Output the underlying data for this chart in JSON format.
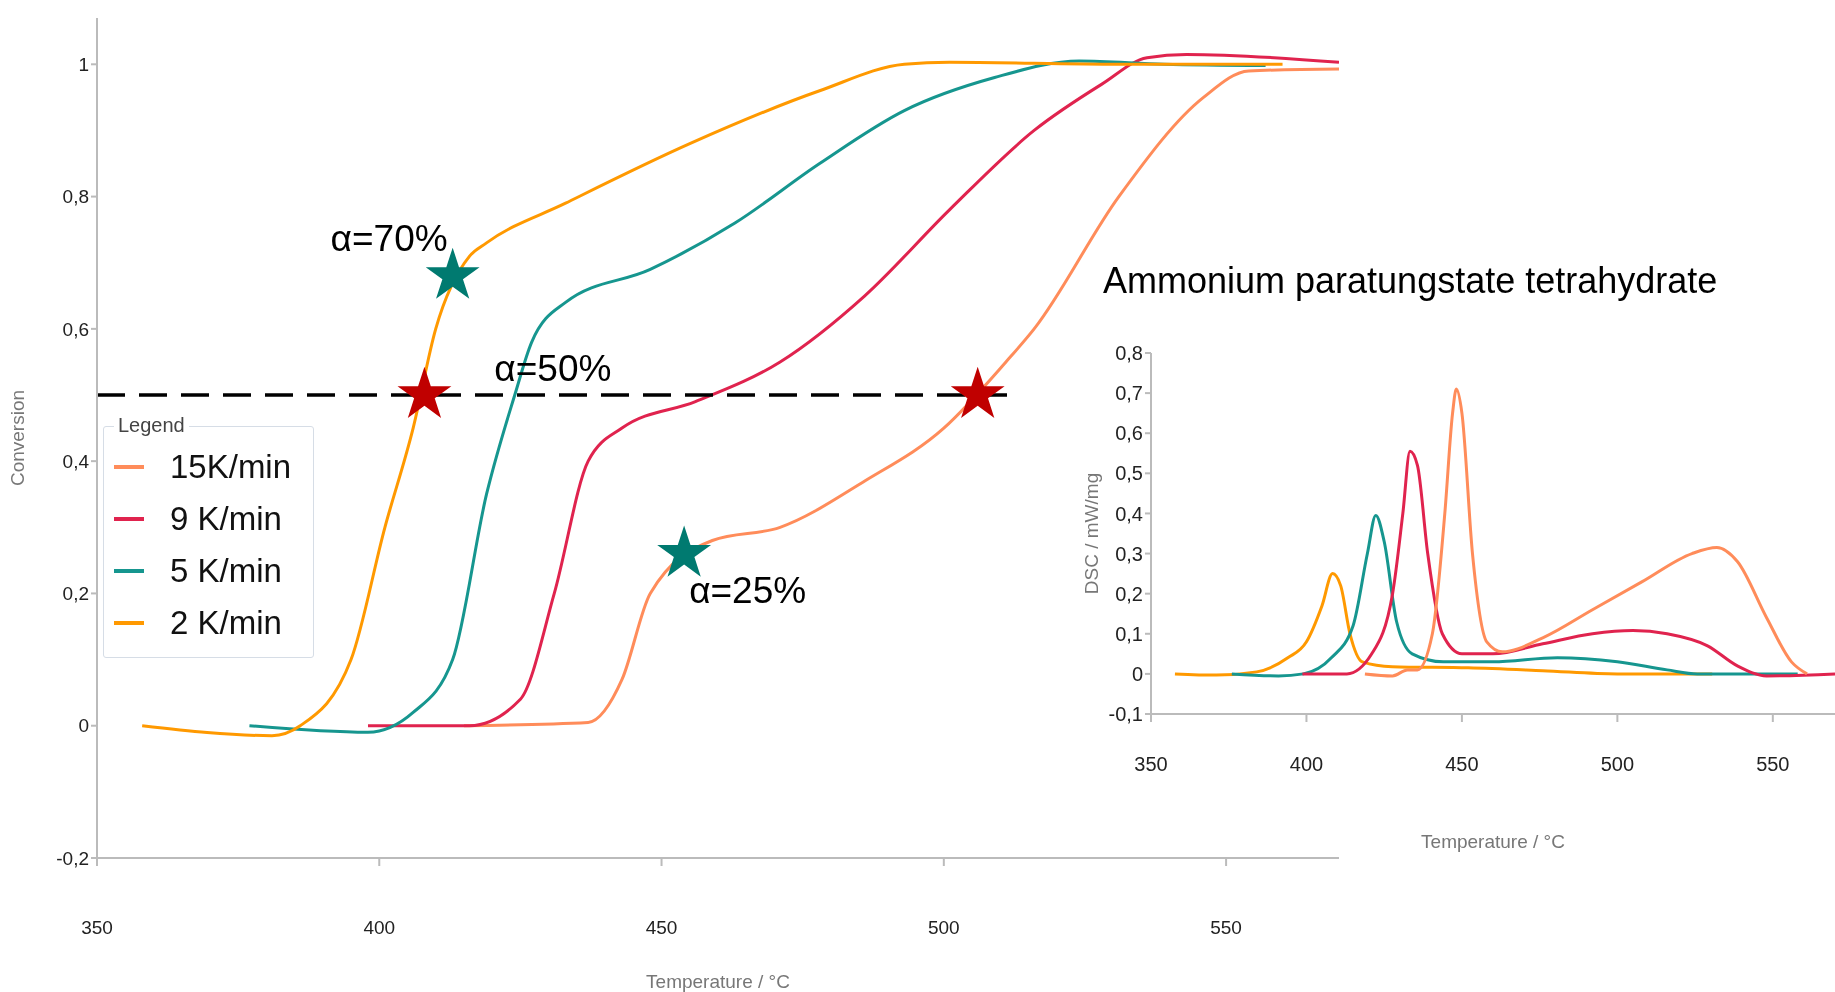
{
  "chart_data": [
    {
      "type": "line",
      "xlabel": "Temperature / °C",
      "ylabel": "Conversion",
      "legend_title": "Legend",
      "legend": "left",
      "grid": false,
      "xlim": [
        350,
        570
      ],
      "xticks": [
        350,
        400,
        450,
        500,
        550
      ],
      "ylim": [
        -0.2,
        1.07
      ],
      "yticks": [
        {
          "value": -0.2,
          "label": "-0,2"
        },
        {
          "value": 0,
          "label": "0"
        },
        {
          "value": 0.2,
          "label": "0,2"
        },
        {
          "value": 0.4,
          "label": "0,4"
        },
        {
          "value": 0.6,
          "label": "0,6"
        },
        {
          "value": 0.8,
          "label": "0,8"
        },
        {
          "value": 1,
          "label": "1"
        }
      ],
      "ref_lines": [
        {
          "axis": "y",
          "value": 0.5,
          "label": "α=50%",
          "color": "#000000",
          "line_style": "dashed"
        }
      ],
      "annotations": [
        {
          "text": "α=70%",
          "x": 413,
          "y": 0.68
        },
        {
          "text": "α=25%",
          "x": 454,
          "y": 0.26
        }
      ],
      "series": [
        {
          "name": "15K/min",
          "color": "#ff8c5a",
          "x": [
            415,
            437,
            443,
            448,
            459,
            471,
            486,
            500,
            511,
            516,
            531,
            546,
            554,
            570
          ],
          "values": [
            0,
            0.005,
            0.07,
            0.2,
            0.28,
            0.3,
            0.37,
            0.45,
            0.55,
            0.6,
            0.8,
            0.95,
            0.99,
            0.993
          ]
        },
        {
          "name": "9 K/min",
          "color": "#e0234e",
          "x": [
            398,
            416,
            425,
            431,
            437,
            443,
            456,
            471,
            486,
            501,
            516,
            528,
            536,
            543,
            570
          ],
          "values": [
            0,
            0,
            0.04,
            0.2,
            0.4,
            0.45,
            0.49,
            0.55,
            0.65,
            0.78,
            0.9,
            0.97,
            1.01,
            1.015,
            1.003
          ]
        },
        {
          "name": "5 K/min",
          "color": "#16968f",
          "x": [
            377,
            398,
            406,
            413,
            419,
            424,
            427,
            433,
            448,
            463,
            478,
            493,
            509,
            524,
            539,
            557
          ],
          "values": [
            0,
            -0.01,
            0.02,
            0.1,
            0.35,
            0.5,
            0.58,
            0.64,
            0.69,
            0.76,
            0.85,
            0.93,
            0.98,
            1.005,
            1,
            0.998
          ]
        },
        {
          "name": "2 K/min",
          "color": "#ff9900",
          "x": [
            358,
            381,
            386,
            395,
            401,
            406,
            410,
            416,
            419,
            433,
            455,
            478,
            493,
            501,
            531,
            560
          ],
          "values": [
            0,
            -0.015,
            0,
            0.1,
            0.3,
            0.45,
            0.6,
            0.71,
            0.73,
            0.79,
            0.88,
            0.96,
            1,
            1.003,
            1,
            1
          ]
        },
        {
          "type": "scatter",
          "marker": "star",
          "color": "#c00000",
          "x": [
            408,
            506
          ],
          "values": [
            0.5,
            0.5
          ]
        },
        {
          "type": "scatter",
          "marker": "star",
          "color": "#007a70",
          "x": [
            413,
            454
          ],
          "values": [
            0.68,
            0.26
          ]
        }
      ]
    },
    {
      "type": "line",
      "title": "Ammonium paratungstate tetrahydrate",
      "xlabel": "Temperature / °C",
      "ylabel": "DSC / mW/mg",
      "legend": false,
      "grid": false,
      "xlim": [
        350,
        570
      ],
      "xticks": [
        350,
        400,
        450,
        500,
        550
      ],
      "ylim": [
        -0.1,
        0.8
      ],
      "yticks": [
        {
          "value": -0.1,
          "label": "-0,1"
        },
        {
          "value": 0,
          "label": "0"
        },
        {
          "value": 0.1,
          "label": "0,1"
        },
        {
          "value": 0.2,
          "label": "0,2"
        },
        {
          "value": 0.3,
          "label": "0,3"
        },
        {
          "value": 0.4,
          "label": "0,4"
        },
        {
          "value": 0.5,
          "label": "0,5"
        },
        {
          "value": 0.6,
          "label": "0,6"
        },
        {
          "value": 0.7,
          "label": "0,7"
        },
        {
          "value": 0.8,
          "label": "0,8"
        }
      ],
      "series": [
        {
          "color": "#ff9900",
          "x": [
            357.7,
            371,
            384,
            394,
            400,
            405,
            408.4,
            411,
            414,
            418,
            427.6,
            452,
            476,
            500,
            530.5
          ],
          "values": [
            0,
            -0.003,
            0.005,
            0.04,
            0.08,
            0.17,
            0.25,
            0.22,
            0.1,
            0.03,
            0.018,
            0.015,
            0.008,
            0,
            0
          ]
        },
        {
          "color": "#16968f",
          "x": [
            376,
            391,
            399,
            408,
            415,
            419.6,
            422.3,
            425,
            429,
            434,
            444,
            460,
            480.7,
            500,
            516,
            525.7,
            558
          ],
          "values": [
            0,
            -0.005,
            0,
            0.04,
            0.12,
            0.3,
            0.395,
            0.33,
            0.13,
            0.05,
            0.03,
            0.03,
            0.04,
            0.03,
            0.01,
            0,
            0
          ]
        },
        {
          "color": "#e0234e",
          "x": [
            398.7,
            413,
            421,
            427.7,
            431,
            433.3,
            435.7,
            439,
            443.7,
            450,
            460,
            476,
            492,
            505,
            516,
            529,
            538.6,
            548,
            570
          ],
          "values": [
            0,
            0,
            0.05,
            0.2,
            0.4,
            0.555,
            0.52,
            0.3,
            0.1,
            0.05,
            0.05,
            0.075,
            0.1,
            0.108,
            0.1,
            0.07,
            0.02,
            -0.005,
            0
          ]
        },
        {
          "color": "#ff8c5a",
          "x": [
            418.8,
            427.7,
            432.5,
            435.7,
            440.5,
            444.5,
            447,
            448.2,
            450,
            453.4,
            458,
            463,
            476,
            492,
            508,
            524,
            532,
            538.6,
            548,
            556,
            561
          ],
          "values": [
            0,
            -0.005,
            0.01,
            0.01,
            0.1,
            0.4,
            0.65,
            0.71,
            0.65,
            0.3,
            0.08,
            0.055,
            0.09,
            0.16,
            0.23,
            0.3,
            0.315,
            0.28,
            0.14,
            0.03,
            0
          ]
        }
      ]
    }
  ]
}
